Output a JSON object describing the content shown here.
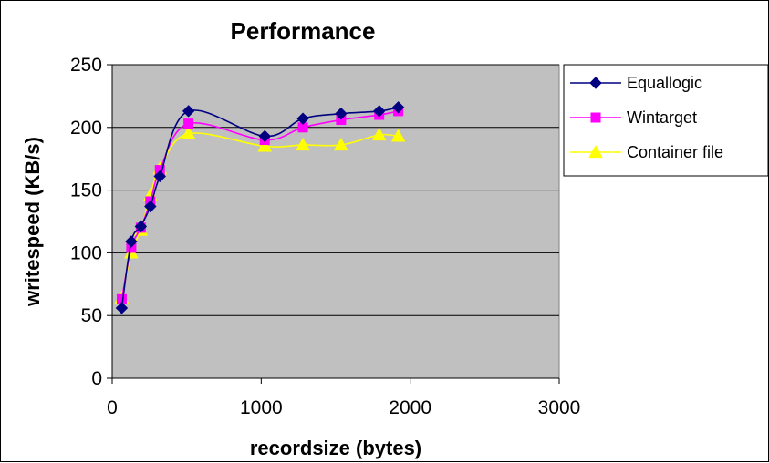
{
  "chart_data": {
    "type": "line",
    "title": "Performance",
    "xlabel": "recordsize (bytes)",
    "ylabel": "writespeed (KB/s)",
    "xlim": [
      0,
      3000
    ],
    "ylim": [
      0,
      250
    ],
    "xticks": [
      0,
      1000,
      2000,
      3000
    ],
    "yticks": [
      0,
      50,
      100,
      150,
      200,
      250
    ],
    "x_tick_labels": [
      "0",
      "1000",
      "2000",
      "3000"
    ],
    "y_tick_labels": [
      "0",
      "50",
      "100",
      "150",
      "200",
      "250"
    ],
    "grid": "horizontal",
    "plot_background": "#C0C0C0",
    "legend_position": "right",
    "x": [
      64,
      128,
      192,
      256,
      320,
      512,
      1024,
      1280,
      1536,
      1792,
      1920
    ],
    "series": [
      {
        "name": "Equallogic",
        "color": "#000080",
        "marker": "diamond",
        "values": [
          56,
          109,
          121,
          137,
          161,
          213,
          193,
          207,
          211,
          213,
          216
        ]
      },
      {
        "name": "Wintarget",
        "color": "#FF00FF",
        "marker": "square",
        "values": [
          63,
          104,
          120,
          141,
          166,
          203,
          190,
          200,
          206,
          210,
          213
        ]
      },
      {
        "name": "Container file",
        "color": "#FFFF00",
        "marker": "triangle",
        "values": [
          64,
          100,
          118,
          146,
          167,
          195,
          185,
          186,
          186,
          194,
          193
        ]
      }
    ]
  }
}
